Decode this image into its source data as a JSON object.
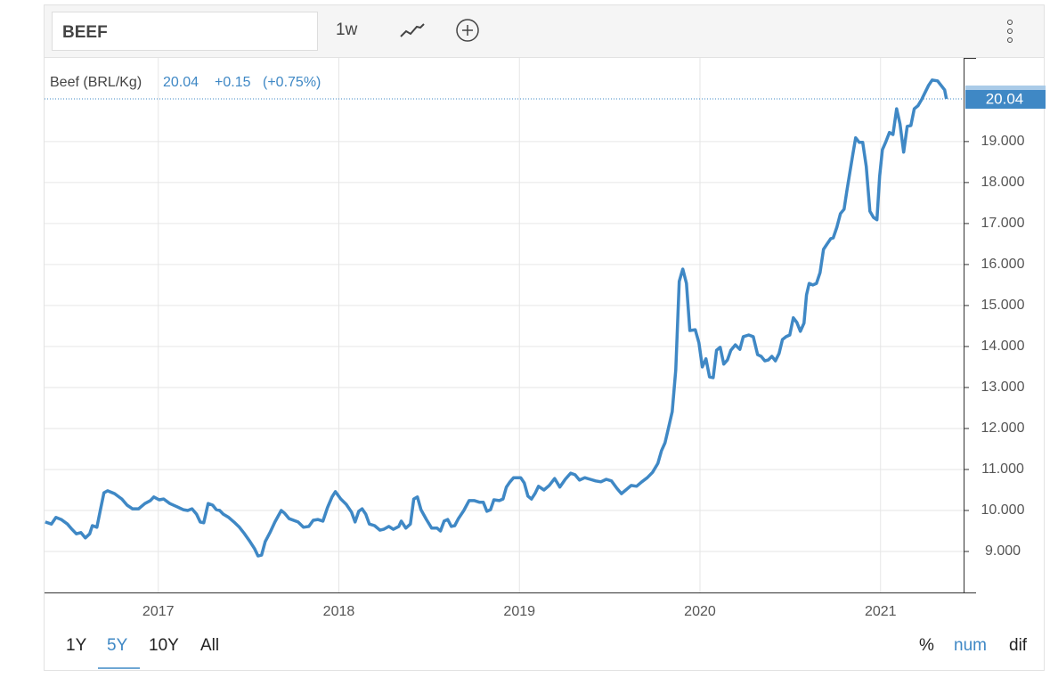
{
  "toolbar": {
    "search": "BEEF",
    "frequency": "1w"
  },
  "ranges": {
    "items": [
      "1Y",
      "5Y",
      "10Y",
      "All"
    ],
    "selected": "5Y"
  },
  "modes": {
    "items": [
      "%",
      "num",
      "dif"
    ],
    "selected": "num"
  },
  "chart_data": {
    "type": "line",
    "change": "+0.15",
    "change_percent": "(+0.75%)",
    "x": [
      2016.374,
      2016.408,
      2016.433,
      2016.462,
      2016.497,
      2016.522,
      2016.546,
      2016.571,
      2016.596,
      2016.62,
      2016.635,
      2016.66,
      2016.679,
      2016.699,
      2016.719,
      2016.758,
      2016.798,
      2016.827,
      2016.857,
      2016.891,
      2016.926,
      2016.956,
      2016.975,
      2017.005,
      2017.03,
      2017.064,
      2017.104,
      2017.138,
      2017.163,
      2017.187,
      2017.212,
      2017.232,
      2017.252,
      2017.276,
      2017.301,
      2017.321,
      2017.34,
      2017.36,
      2017.39,
      2017.419,
      2017.449,
      2017.478,
      2017.508,
      2017.533,
      2017.552,
      2017.572,
      2017.592,
      2017.621,
      2017.646,
      2017.681,
      2017.7,
      2017.725,
      2017.774,
      2017.804,
      2017.834,
      2017.858,
      2017.883,
      2017.912,
      2017.937,
      2017.962,
      2017.981,
      2018.011,
      2018.041,
      2018.07,
      2018.09,
      2018.11,
      2018.129,
      2018.149,
      2018.169,
      2018.198,
      2018.228,
      2018.248,
      2018.277,
      2018.302,
      2018.332,
      2018.346,
      2018.371,
      2018.396,
      2018.415,
      2018.435,
      2018.455,
      2018.485,
      2018.514,
      2018.544,
      2018.563,
      2018.583,
      2018.603,
      2018.623,
      2018.642,
      2018.662,
      2018.692,
      2018.721,
      2018.751,
      2018.78,
      2018.8,
      2018.82,
      2018.84,
      2018.859,
      2018.889,
      2018.909,
      2018.928,
      2018.948,
      2018.968,
      2019.007,
      2019.027,
      2019.047,
      2019.067,
      2019.086,
      2019.106,
      2019.136,
      2019.165,
      2019.195,
      2019.224,
      2019.254,
      2019.284,
      2019.308,
      2019.333,
      2019.362,
      2019.392,
      2019.422,
      2019.451,
      2019.481,
      2019.51,
      2019.54,
      2019.565,
      2019.589,
      2019.619,
      2019.649,
      2019.678,
      2019.708,
      2019.737,
      2019.767,
      2019.787,
      2019.806,
      2019.826,
      2019.846,
      2019.866,
      2019.885,
      2019.905,
      2019.925,
      2019.944,
      2019.974,
      2019.994,
      2020.013,
      2020.033,
      2020.053,
      2020.073,
      2020.092,
      2020.112,
      2020.132,
      2020.152,
      2020.171,
      2020.196,
      2020.221,
      2020.24,
      2020.27,
      2020.295,
      2020.319,
      2020.339,
      2020.359,
      2020.378,
      2020.398,
      2020.418,
      2020.438,
      2020.457,
      2020.477,
      2020.497,
      2020.517,
      2020.536,
      2020.556,
      2020.576,
      2020.59,
      2020.605,
      2020.625,
      2020.645,
      2020.665,
      2020.684,
      2020.704,
      2020.724,
      2020.738,
      2020.758,
      2020.778,
      2020.798,
      2020.813,
      2020.827,
      2020.847,
      2020.862,
      2020.882,
      2020.901,
      2020.921,
      2020.941,
      2020.961,
      2020.98,
      2020.995,
      2021.01,
      2021.03,
      2021.049,
      2021.069,
      2021.089,
      2021.108,
      2021.128,
      2021.148,
      2021.168,
      2021.187,
      2021.207,
      2021.227,
      2021.247,
      2021.266,
      2021.286,
      2021.316,
      2021.335,
      2021.355,
      2021.365
    ],
    "series": [
      {
        "name": "Beef (BRL/Kg)",
        "color": "#3f88c5",
        "values": [
          9.72,
          9.67,
          9.83,
          9.78,
          9.67,
          9.54,
          9.43,
          9.46,
          9.33,
          9.43,
          9.63,
          9.59,
          10.0,
          10.43,
          10.48,
          10.41,
          10.28,
          10.13,
          10.04,
          10.04,
          10.17,
          10.24,
          10.33,
          10.26,
          10.28,
          10.17,
          10.09,
          10.02,
          10.0,
          10.04,
          9.91,
          9.72,
          9.7,
          10.17,
          10.13,
          10.02,
          10.0,
          9.91,
          9.83,
          9.72,
          9.59,
          9.43,
          9.24,
          9.07,
          8.89,
          8.91,
          9.24,
          9.48,
          9.72,
          10.0,
          9.93,
          9.8,
          9.72,
          9.59,
          9.61,
          9.76,
          9.78,
          9.74,
          10.07,
          10.33,
          10.46,
          10.28,
          10.15,
          9.96,
          9.72,
          9.98,
          10.04,
          9.91,
          9.67,
          9.63,
          9.52,
          9.54,
          9.61,
          9.54,
          9.61,
          9.74,
          9.57,
          9.67,
          10.28,
          10.33,
          10.02,
          9.78,
          9.57,
          9.57,
          9.5,
          9.74,
          9.78,
          9.61,
          9.63,
          9.8,
          10.0,
          10.24,
          10.24,
          10.2,
          10.2,
          9.98,
          10.02,
          10.26,
          10.24,
          10.28,
          10.57,
          10.7,
          10.8,
          10.8,
          10.67,
          10.35,
          10.28,
          10.41,
          10.59,
          10.5,
          10.61,
          10.78,
          10.57,
          10.76,
          10.91,
          10.87,
          10.74,
          10.8,
          10.76,
          10.72,
          10.7,
          10.76,
          10.72,
          10.54,
          10.41,
          10.5,
          10.61,
          10.59,
          10.7,
          10.8,
          10.93,
          11.15,
          11.46,
          11.65,
          12.02,
          12.41,
          13.43,
          15.59,
          15.89,
          15.54,
          14.39,
          14.41,
          14.09,
          13.5,
          13.7,
          13.26,
          13.24,
          13.91,
          13.98,
          13.57,
          13.67,
          13.91,
          14.04,
          13.93,
          14.24,
          14.28,
          14.24,
          13.8,
          13.76,
          13.65,
          13.67,
          13.76,
          13.65,
          13.83,
          14.17,
          14.24,
          14.28,
          14.7,
          14.59,
          14.37,
          14.57,
          15.26,
          15.54,
          15.5,
          15.54,
          15.8,
          16.37,
          16.5,
          16.63,
          16.65,
          16.91,
          17.24,
          17.35,
          17.78,
          18.17,
          18.7,
          19.09,
          18.98,
          18.98,
          18.39,
          17.3,
          17.15,
          17.09,
          18.15,
          18.8,
          19.0,
          19.22,
          19.17,
          19.8,
          19.43,
          18.74,
          19.37,
          19.39,
          19.8,
          19.87,
          20.02,
          20.2,
          20.37,
          20.5,
          20.48,
          20.37,
          20.26,
          20.04
        ]
      }
    ],
    "xlim": [
      2016.37,
      2021.46
    ],
    "xticks": [
      2017,
      2018,
      2019,
      2020,
      2021
    ],
    "ylim": [
      8,
      21.04
    ],
    "yticks": [
      {
        "value": 9,
        "label": "9.000"
      },
      {
        "value": 10,
        "label": "10.000"
      },
      {
        "value": 11,
        "label": "11.000"
      },
      {
        "value": 12,
        "label": "12.000"
      },
      {
        "value": 13,
        "label": "13.000"
      },
      {
        "value": 14,
        "label": "14.000"
      },
      {
        "value": 15,
        "label": "15.000"
      },
      {
        "value": 16,
        "label": "16.000"
      },
      {
        "value": 17,
        "label": "17.000"
      },
      {
        "value": 18,
        "label": "18.000"
      },
      {
        "value": 19,
        "label": "19.000"
      }
    ],
    "grid": true
  }
}
